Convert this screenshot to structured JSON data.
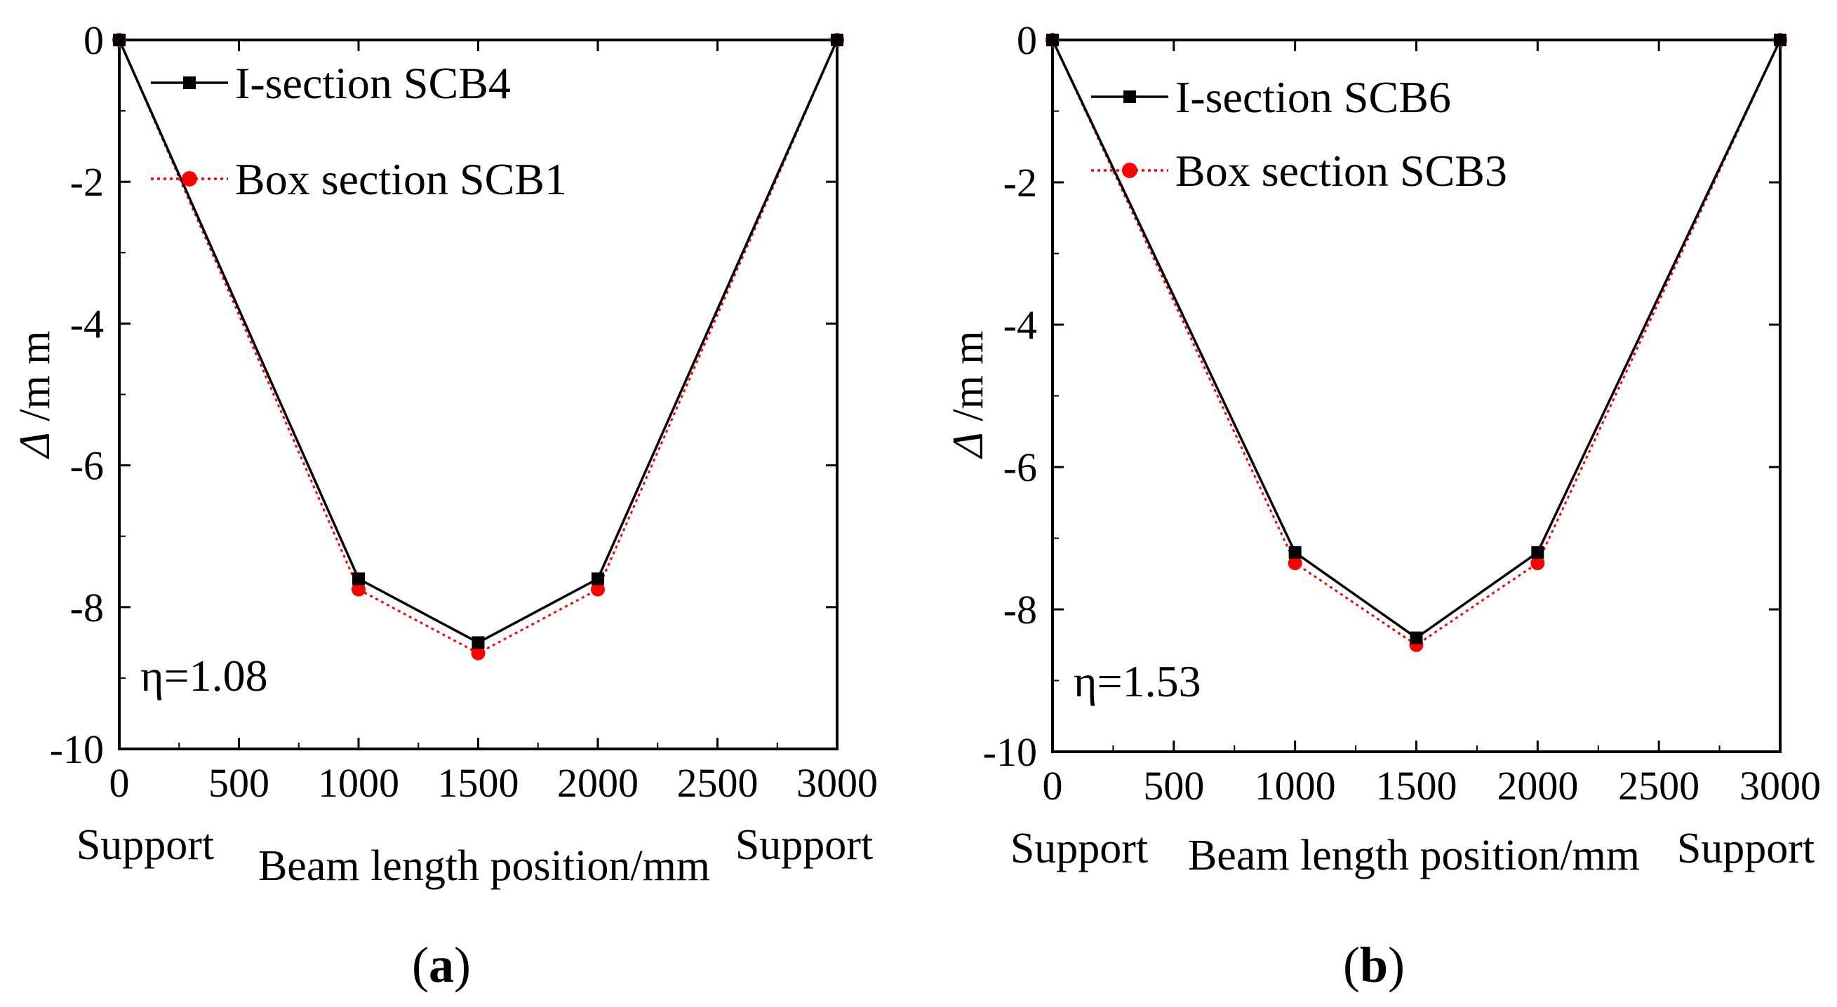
{
  "figure": {
    "panels": [
      "a",
      "b"
    ]
  },
  "chart_data": [
    {
      "type": "line",
      "panel_label": "a",
      "xlabel": "Beam length position/mm",
      "ylabel_symbol": "Δ",
      "ylabel_unit": " /m m",
      "xlim": [
        0,
        3000
      ],
      "ylim": [
        -10,
        0
      ],
      "x_ticks": [
        0,
        500,
        1000,
        1500,
        2000,
        2500,
        3000
      ],
      "x_tick_labels": [
        "0",
        "500",
        "1000",
        "1500",
        "2000",
        "2500",
        "3000"
      ],
      "y_ticks": [
        0,
        -2,
        -4,
        -6,
        -8,
        -10
      ],
      "y_tick_labels": [
        "0",
        "-2",
        "-4",
        "-6",
        "-8",
        "-10"
      ],
      "support_labels": [
        "Support",
        "Support"
      ],
      "annotation": "η=1.08",
      "legend_position": "top-left",
      "series": [
        {
          "name": "I-section SCB4",
          "color": "#000000",
          "line_style": "solid",
          "marker": "square",
          "x": [
            0,
            1000,
            1500,
            2000,
            3000
          ],
          "y": [
            0,
            -7.6,
            -8.5,
            -7.6,
            0
          ]
        },
        {
          "name": "Box section SCB1",
          "color": "#ff0000",
          "line_style": "dotted",
          "marker": "circle",
          "x": [
            0,
            1000,
            1500,
            2000,
            3000
          ],
          "y": [
            0,
            -7.75,
            -8.65,
            -7.75,
            0
          ]
        }
      ]
    },
    {
      "type": "line",
      "panel_label": "b",
      "xlabel": "Beam length position/mm",
      "ylabel_symbol": "Δ",
      "ylabel_unit": " /m m",
      "xlim": [
        0,
        3000
      ],
      "ylim": [
        -10,
        0
      ],
      "x_ticks": [
        0,
        500,
        1000,
        1500,
        2000,
        2500,
        3000
      ],
      "x_tick_labels": [
        "0",
        "500",
        "1000",
        "1500",
        "2000",
        "2500",
        "3000"
      ],
      "y_ticks": [
        0,
        -2,
        -4,
        -6,
        -8,
        -10
      ],
      "y_tick_labels": [
        "0",
        "-2",
        "-4",
        "-6",
        "-8",
        "-10"
      ],
      "support_labels": [
        "Support",
        "Support"
      ],
      "annotation": "η=1.53",
      "legend_position": "top-left",
      "series": [
        {
          "name": "I-section SCB6",
          "color": "#000000",
          "line_style": "solid",
          "marker": "square",
          "x": [
            0,
            1000,
            1500,
            2000,
            3000
          ],
          "y": [
            0,
            -7.2,
            -8.4,
            -7.2,
            0
          ]
        },
        {
          "name": "Box section SCB3",
          "color": "#ff0000",
          "line_style": "dotted",
          "marker": "circle",
          "x": [
            0,
            1000,
            1500,
            2000,
            3000
          ],
          "y": [
            0,
            -7.35,
            -8.5,
            -7.35,
            0
          ]
        }
      ]
    }
  ]
}
